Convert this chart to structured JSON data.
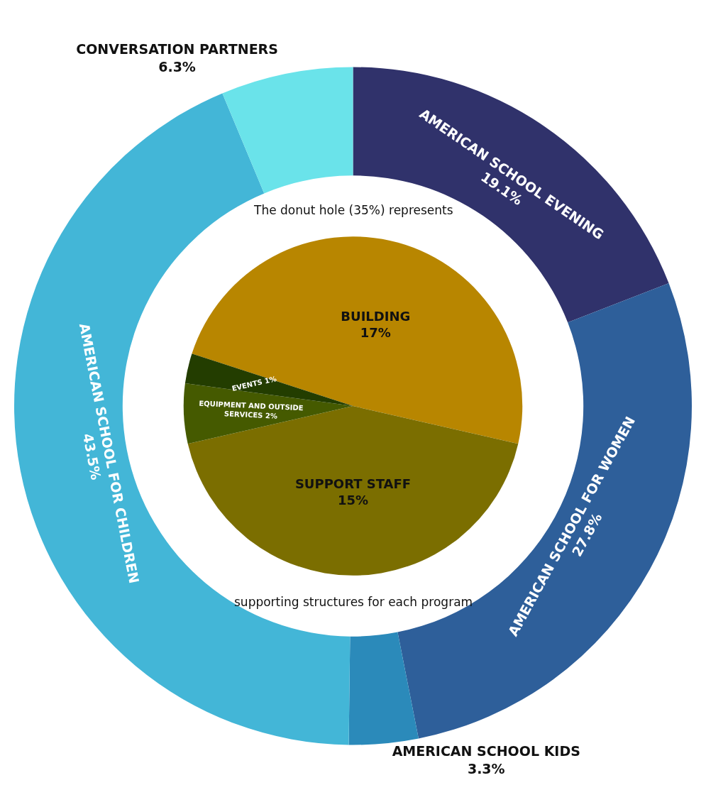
{
  "chart_data": [
    {
      "type": "donut",
      "categories": [
        "AMERICAN SCHOOL EVENING",
        "AMERICAN SCHOOL FOR WOMEN",
        "AMERICAN SCHOOL KIDS",
        "AMERICAN SCHOOL FOR CHILDREN",
        "CONVERSATION PARTNERS"
      ],
      "values": [
        19.1,
        27.8,
        3.3,
        43.5,
        6.3
      ],
      "value_labels": [
        "19.1%",
        "27.8%",
        "3.3%",
        "43.5%",
        "6.3%"
      ],
      "colors": [
        "#30326b",
        "#2e5f9a",
        "#2b8aba",
        "#43b6d7",
        "#6ae3ea"
      ],
      "annotations": [
        "The donut hole (35%) represents",
        "supporting structures for each program"
      ],
      "legend": false
    },
    {
      "type": "pie",
      "categories": [
        "BUILDING",
        "SUPPORT STAFF",
        "EQUIPMENT AND OUTSIDE SERVICES",
        "EVENTS"
      ],
      "values": [
        17,
        15,
        2,
        1
      ],
      "value_labels": [
        "17%",
        "15%",
        "2%",
        "1%"
      ],
      "colors": [
        "#b88600",
        "#7b6e00",
        "#455a00",
        "#233d00"
      ],
      "legend": false
    }
  ]
}
